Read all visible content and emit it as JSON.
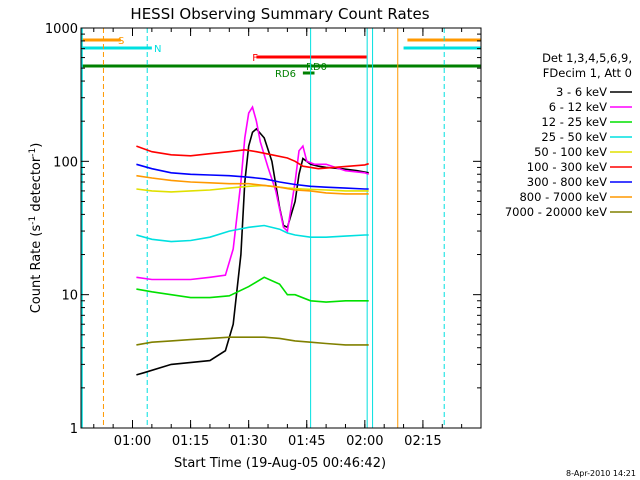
{
  "chart_data": {
    "type": "line",
    "title": "HESSI Observing Summary Count Rates",
    "xlabel": "Start Time (19-Aug-05 00:46:42)",
    "ylabel_main": "Count Rate (s",
    "ylabel_sup1": "-1",
    "ylabel_mid": " detector",
    "ylabel_sup2": "-1",
    "ylabel_end": ")",
    "yscale": "log",
    "ylim": [
      1,
      1000
    ],
    "xlim_minutes": [
      46.7,
      150
    ],
    "y_ticks": [
      "1",
      "10",
      "100",
      "1000"
    ],
    "x_ticks": [
      {
        "label": "01:00",
        "min": 60
      },
      {
        "label": "01:15",
        "min": 75
      },
      {
        "label": "01:30",
        "min": 90
      },
      {
        "label": "01:45",
        "min": 105
      },
      {
        "label": "02:00",
        "min": 120
      },
      {
        "label": "02:15",
        "min": 135
      }
    ],
    "legend_title_1": "Det 1,3,4,5,6,9,",
    "legend_title_2": "FDecim 1, Att 0",
    "series": [
      {
        "name": "3 - 6 keV",
        "color": "#000000",
        "points": [
          [
            61,
            2.5
          ],
          [
            63,
            2.6
          ],
          [
            70,
            3.0
          ],
          [
            80,
            3.2
          ],
          [
            84,
            3.8
          ],
          [
            86,
            6
          ],
          [
            88,
            20
          ],
          [
            89,
            70
          ],
          [
            90,
            130
          ],
          [
            91,
            165
          ],
          [
            92,
            175
          ],
          [
            94,
            150
          ],
          [
            96,
            100
          ],
          [
            98,
            45
          ],
          [
            99,
            33
          ],
          [
            100,
            32
          ],
          [
            102,
            50
          ],
          [
            103,
            80
          ],
          [
            104,
            105
          ],
          [
            106,
            95
          ],
          [
            108,
            92
          ],
          [
            110,
            90
          ],
          [
            114,
            88
          ],
          [
            118,
            85
          ],
          [
            121,
            82
          ]
        ]
      },
      {
        "name": "6 - 12 keV",
        "color": "#ff00ff",
        "points": [
          [
            61,
            13.5
          ],
          [
            65,
            13
          ],
          [
            70,
            13
          ],
          [
            75,
            13
          ],
          [
            80,
            13.5
          ],
          [
            84,
            14
          ],
          [
            86,
            22
          ],
          [
            88,
            70
          ],
          [
            89,
            150
          ],
          [
            90,
            230
          ],
          [
            91,
            255
          ],
          [
            92,
            200
          ],
          [
            93,
            140
          ],
          [
            95,
            90
          ],
          [
            97,
            60
          ],
          [
            99,
            32
          ],
          [
            100,
            30
          ],
          [
            102,
            70
          ],
          [
            103,
            120
          ],
          [
            104,
            130
          ],
          [
            105,
            100
          ],
          [
            107,
            95
          ],
          [
            110,
            95
          ],
          [
            115,
            85
          ],
          [
            120,
            82
          ],
          [
            121,
            80
          ]
        ]
      },
      {
        "name": "12 - 25 keV",
        "color": "#00e000",
        "points": [
          [
            61,
            11
          ],
          [
            65,
            10.5
          ],
          [
            70,
            10
          ],
          [
            75,
            9.5
          ],
          [
            80,
            9.5
          ],
          [
            85,
            9.8
          ],
          [
            90,
            11.5
          ],
          [
            94,
            13.5
          ],
          [
            98,
            12
          ],
          [
            100,
            10
          ],
          [
            102,
            10
          ],
          [
            106,
            9
          ],
          [
            110,
            8.8
          ],
          [
            115,
            9
          ],
          [
            120,
            9
          ],
          [
            121,
            9
          ]
        ]
      },
      {
        "name": "25 - 50 keV",
        "color": "#00e0e0",
        "points": [
          [
            61,
            28
          ],
          [
            65,
            26
          ],
          [
            70,
            25
          ],
          [
            75,
            25.5
          ],
          [
            80,
            27
          ],
          [
            85,
            30
          ],
          [
            90,
            32
          ],
          [
            94,
            33
          ],
          [
            98,
            31
          ],
          [
            100,
            29
          ],
          [
            102,
            28
          ],
          [
            106,
            27
          ],
          [
            110,
            27
          ],
          [
            115,
            27.5
          ],
          [
            120,
            28
          ],
          [
            121,
            28
          ]
        ]
      },
      {
        "name": "50 - 100 keV",
        "color": "#e0e000",
        "points": [
          [
            61,
            62
          ],
          [
            65,
            60
          ],
          [
            70,
            59
          ],
          [
            75,
            60
          ],
          [
            80,
            61
          ],
          [
            85,
            63
          ],
          [
            90,
            65
          ],
          [
            94,
            66
          ],
          [
            98,
            64
          ],
          [
            100,
            63
          ],
          [
            104,
            62
          ],
          [
            110,
            61
          ],
          [
            115,
            60
          ],
          [
            120,
            60
          ],
          [
            121,
            60
          ]
        ]
      },
      {
        "name": "100 - 300 keV",
        "color": "#ff0000",
        "points": [
          [
            61,
            130
          ],
          [
            65,
            118
          ],
          [
            70,
            112
          ],
          [
            75,
            110
          ],
          [
            80,
            114
          ],
          [
            85,
            118
          ],
          [
            89,
            122
          ],
          [
            92,
            118
          ],
          [
            96,
            112
          ],
          [
            100,
            106
          ],
          [
            102,
            100
          ],
          [
            104,
            92
          ],
          [
            108,
            88
          ],
          [
            112,
            90
          ],
          [
            116,
            92
          ],
          [
            120,
            94
          ],
          [
            121,
            96
          ]
        ]
      },
      {
        "name": "300 - 800 keV",
        "color": "#0000ff",
        "points": [
          [
            61,
            95
          ],
          [
            65,
            88
          ],
          [
            70,
            82
          ],
          [
            75,
            80
          ],
          [
            80,
            79
          ],
          [
            85,
            78
          ],
          [
            90,
            76
          ],
          [
            94,
            74
          ],
          [
            98,
            70
          ],
          [
            102,
            67
          ],
          [
            106,
            65
          ],
          [
            110,
            64
          ],
          [
            115,
            63
          ],
          [
            120,
            62
          ],
          [
            121,
            62
          ]
        ]
      },
      {
        "name": "800 - 7000 keV",
        "color": "#ff9900",
        "points": [
          [
            61,
            78
          ],
          [
            65,
            75
          ],
          [
            70,
            72
          ],
          [
            75,
            70
          ],
          [
            80,
            69
          ],
          [
            85,
            68
          ],
          [
            90,
            68
          ],
          [
            94,
            66
          ],
          [
            98,
            64
          ],
          [
            102,
            61
          ],
          [
            106,
            60
          ],
          [
            110,
            58
          ],
          [
            115,
            57
          ],
          [
            120,
            57
          ],
          [
            121,
            57
          ]
        ]
      },
      {
        "name": "7000 - 20000 keV",
        "color": "#808000",
        "points": [
          [
            61,
            4.2
          ],
          [
            65,
            4.4
          ],
          [
            70,
            4.5
          ],
          [
            75,
            4.6
          ],
          [
            80,
            4.7
          ],
          [
            85,
            4.8
          ],
          [
            90,
            4.8
          ],
          [
            94,
            4.8
          ],
          [
            98,
            4.7
          ],
          [
            102,
            4.5
          ],
          [
            106,
            4.4
          ],
          [
            110,
            4.3
          ],
          [
            115,
            4.2
          ],
          [
            120,
            4.2
          ],
          [
            121,
            4.2
          ]
        ]
      }
    ],
    "flags": [
      {
        "label": "S",
        "color": "#ff9900"
      },
      {
        "label": "N",
        "color": "#00e0e0"
      },
      {
        "label": "F",
        "color": "#ff0000"
      },
      {
        "label": "RD0",
        "color": "#008000"
      },
      {
        "label": "RD6",
        "color": "#008000"
      }
    ]
  },
  "footer_stamp": "8-Apr-2010 14:21"
}
